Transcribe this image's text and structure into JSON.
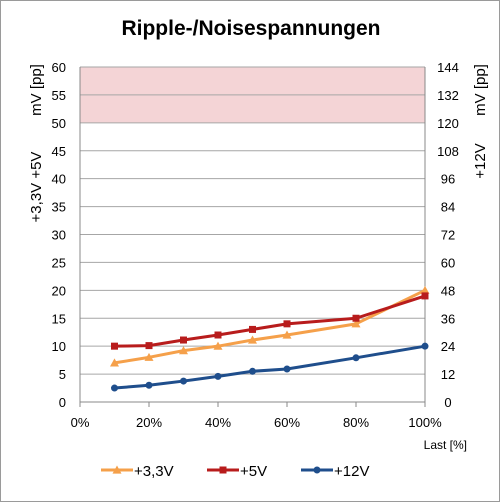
{
  "chart_data": {
    "type": "line",
    "title": "Ripple-/Noisespannungen",
    "xlabel": "Last [%]",
    "ylabel_left_top": "mV [pp]",
    "ylabel_left_bottom": "+3,3V +5V",
    "ylabel_right_top": "mV [pp]",
    "ylabel_right_bottom": "+12V",
    "xlim": [
      0,
      100
    ],
    "ylim_left": [
      0,
      60
    ],
    "ylim_right": [
      0,
      144
    ],
    "x_ticks": [
      0,
      20,
      40,
      60,
      80,
      100
    ],
    "x_tick_labels": [
      "0%",
      "20%",
      "40%",
      "60%",
      "80%",
      "100%"
    ],
    "y_left_ticks": [
      0,
      5,
      10,
      15,
      20,
      25,
      30,
      35,
      40,
      45,
      50,
      55,
      60
    ],
    "y_right_ticks": [
      0,
      12,
      24,
      36,
      48,
      60,
      72,
      84,
      96,
      108,
      120,
      132,
      144
    ],
    "limit_band": {
      "from": 50,
      "to": 60,
      "axis": "left",
      "color": "#f4d4d6"
    },
    "grid": true,
    "legend_position": "bottom",
    "series": [
      {
        "name": "+3,3V",
        "axis": "left",
        "color": "#f5a04a",
        "marker": "triangle",
        "x": [
          10,
          20,
          30,
          40,
          50,
          60,
          80,
          100
        ],
        "values": [
          7,
          8,
          9.2,
          10,
          11.1,
          12,
          14,
          20
        ]
      },
      {
        "name": "+5V",
        "axis": "left",
        "color": "#b81c1c",
        "marker": "square",
        "x": [
          10,
          20,
          30,
          40,
          50,
          60,
          80,
          100
        ],
        "values": [
          10,
          10.1,
          11.1,
          12,
          13,
          14,
          15,
          19
        ]
      },
      {
        "name": "+12V",
        "axis": "right",
        "color": "#1f4e8c",
        "marker": "circle",
        "x": [
          10,
          20,
          30,
          40,
          50,
          60,
          80,
          100
        ],
        "values": [
          6,
          7.2,
          9,
          11,
          13.2,
          14.2,
          19,
          24
        ]
      }
    ]
  }
}
